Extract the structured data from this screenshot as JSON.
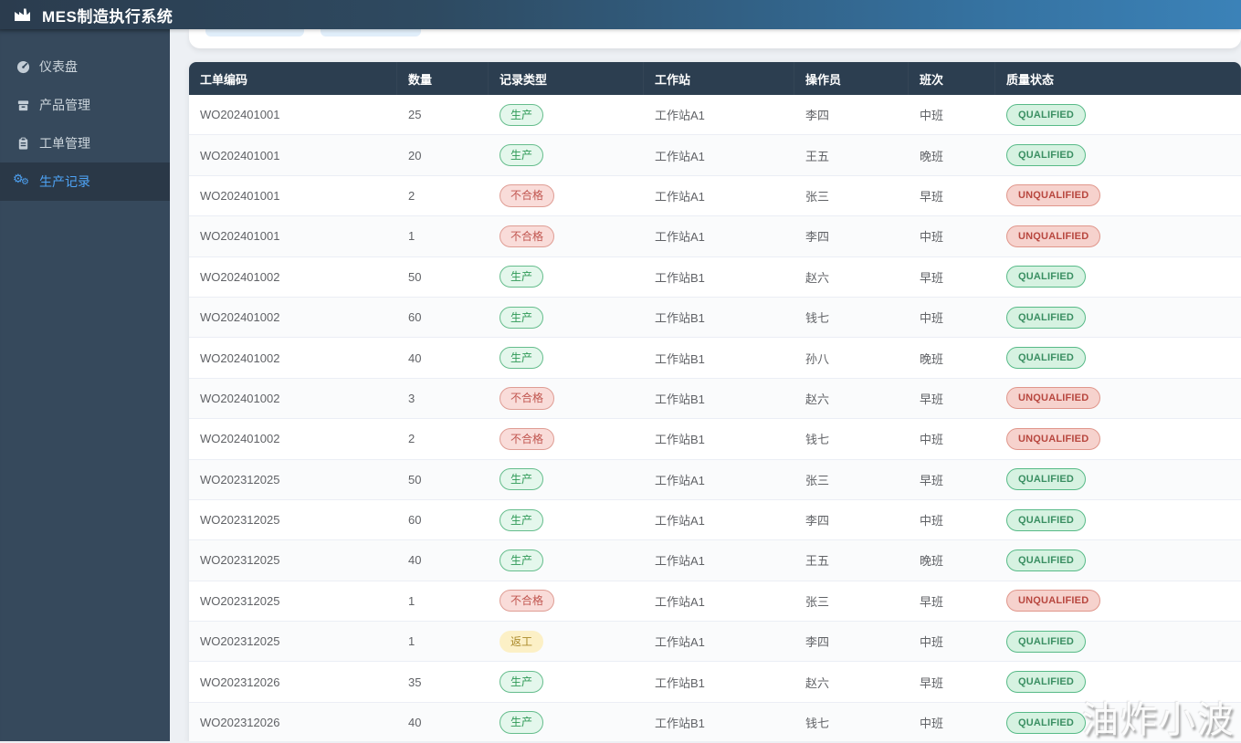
{
  "app": {
    "title": "MES制造执行系统",
    "logo_icon": "factory-icon"
  },
  "sidebar": {
    "items": [
      {
        "label": "仪表盘",
        "icon": "gauge-icon",
        "active": false
      },
      {
        "label": "产品管理",
        "icon": "product-box-icon",
        "active": false
      },
      {
        "label": "工单管理",
        "icon": "clipboard-icon",
        "active": false
      },
      {
        "label": "生产记录",
        "icon": "gears-icon",
        "active": true
      }
    ]
  },
  "table": {
    "columns": [
      "工单编码",
      "数量",
      "记录类型",
      "工作站",
      "操作员",
      "班次",
      "质量状态"
    ],
    "rows": [
      {
        "work_order": "WO202401001",
        "quantity": "25",
        "record_type": "生产",
        "record_variant": "success",
        "station": "工作站A1",
        "operator": "李四",
        "shift": "中班",
        "quality": "QUALIFIED",
        "quality_variant": "success"
      },
      {
        "work_order": "WO202401001",
        "quantity": "20",
        "record_type": "生产",
        "record_variant": "success",
        "station": "工作站A1",
        "operator": "王五",
        "shift": "晚班",
        "quality": "QUALIFIED",
        "quality_variant": "success"
      },
      {
        "work_order": "WO202401001",
        "quantity": "2",
        "record_type": "不合格",
        "record_variant": "danger",
        "station": "工作站A1",
        "operator": "张三",
        "shift": "早班",
        "quality": "UNQUALIFIED",
        "quality_variant": "danger"
      },
      {
        "work_order": "WO202401001",
        "quantity": "1",
        "record_type": "不合格",
        "record_variant": "danger",
        "station": "工作站A1",
        "operator": "李四",
        "shift": "中班",
        "quality": "UNQUALIFIED",
        "quality_variant": "danger"
      },
      {
        "work_order": "WO202401002",
        "quantity": "50",
        "record_type": "生产",
        "record_variant": "success",
        "station": "工作站B1",
        "operator": "赵六",
        "shift": "早班",
        "quality": "QUALIFIED",
        "quality_variant": "success"
      },
      {
        "work_order": "WO202401002",
        "quantity": "60",
        "record_type": "生产",
        "record_variant": "success",
        "station": "工作站B1",
        "operator": "钱七",
        "shift": "中班",
        "quality": "QUALIFIED",
        "quality_variant": "success"
      },
      {
        "work_order": "WO202401002",
        "quantity": "40",
        "record_type": "生产",
        "record_variant": "success",
        "station": "工作站B1",
        "operator": "孙八",
        "shift": "晚班",
        "quality": "QUALIFIED",
        "quality_variant": "success"
      },
      {
        "work_order": "WO202401002",
        "quantity": "3",
        "record_type": "不合格",
        "record_variant": "danger",
        "station": "工作站B1",
        "operator": "赵六",
        "shift": "早班",
        "quality": "UNQUALIFIED",
        "quality_variant": "danger"
      },
      {
        "work_order": "WO202401002",
        "quantity": "2",
        "record_type": "不合格",
        "record_variant": "danger",
        "station": "工作站B1",
        "operator": "钱七",
        "shift": "中班",
        "quality": "UNQUALIFIED",
        "quality_variant": "danger"
      },
      {
        "work_order": "WO202312025",
        "quantity": "50",
        "record_type": "生产",
        "record_variant": "success",
        "station": "工作站A1",
        "operator": "张三",
        "shift": "早班",
        "quality": "QUALIFIED",
        "quality_variant": "success"
      },
      {
        "work_order": "WO202312025",
        "quantity": "60",
        "record_type": "生产",
        "record_variant": "success",
        "station": "工作站A1",
        "operator": "李四",
        "shift": "中班",
        "quality": "QUALIFIED",
        "quality_variant": "success"
      },
      {
        "work_order": "WO202312025",
        "quantity": "40",
        "record_type": "生产",
        "record_variant": "success",
        "station": "工作站A1",
        "operator": "王五",
        "shift": "晚班",
        "quality": "QUALIFIED",
        "quality_variant": "success"
      },
      {
        "work_order": "WO202312025",
        "quantity": "1",
        "record_type": "不合格",
        "record_variant": "danger",
        "station": "工作站A1",
        "operator": "张三",
        "shift": "早班",
        "quality": "UNQUALIFIED",
        "quality_variant": "danger"
      },
      {
        "work_order": "WO202312025",
        "quantity": "1",
        "record_type": "返工",
        "record_variant": "warning",
        "station": "工作站A1",
        "operator": "李四",
        "shift": "中班",
        "quality": "QUALIFIED",
        "quality_variant": "success"
      },
      {
        "work_order": "WO202312026",
        "quantity": "35",
        "record_type": "生产",
        "record_variant": "success",
        "station": "工作站B1",
        "operator": "赵六",
        "shift": "早班",
        "quality": "QUALIFIED",
        "quality_variant": "success"
      },
      {
        "work_order": "WO202312026",
        "quantity": "40",
        "record_type": "生产",
        "record_variant": "success",
        "station": "工作站B1",
        "operator": "钱七",
        "shift": "中班",
        "quality": "QUALIFIED",
        "quality_variant": "success"
      }
    ]
  },
  "watermark": {
    "text": "油炸小波"
  },
  "colors": {
    "header_gradient_left": "#2b3c4e",
    "header_gradient_right": "#3b82b8",
    "sidebar_bg": "#36495c",
    "sidebar_active_bg": "#2a3847",
    "sidebar_active_text": "#4ea3f5",
    "table_header_bg": "#2c3e50",
    "badge_success_text": "#2f9a57",
    "badge_danger_text": "#c15650",
    "badge_warning_text": "#ab8a2b"
  }
}
